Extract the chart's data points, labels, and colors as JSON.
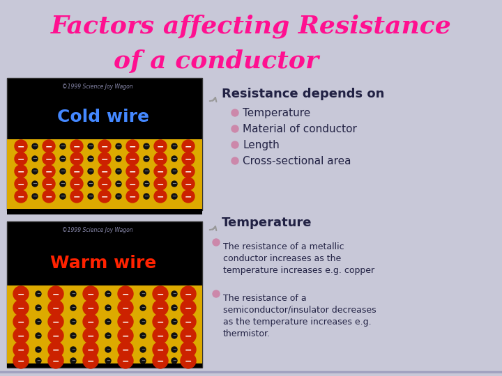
{
  "title_line1": "Factors affecting Resistance",
  "title_line2": "of a conductor",
  "title_color": "#FF1090",
  "bg_color": "#C8C8D8",
  "section1_header": "Resistance depends on",
  "section1_bullets": [
    "Temperature",
    "Material of conductor",
    "Length",
    "Cross-sectional area"
  ],
  "section2_header": "Temperature",
  "section2_bullet1": "The resistance of a metallic\nconductor increases as the\ntemperature increases e.g. copper",
  "section2_bullet2": "The resistance of a\nsemiconductor/insulator decreases\nas the temperature increases e.g.\nthermistor.",
  "header_color": "#222244",
  "bullet_color": "#222244",
  "bullet_marker_color": "#CC88AA",
  "cold_wire_label": "Cold wire",
  "warm_wire_label": "Warm wire",
  "cold_wire_label_color": "#4488FF",
  "warm_wire_label_color": "#FF2200",
  "electron_strip_color": "#DDAA00",
  "electron_color": "#CC2200",
  "copyright_color": "#8888AA",
  "arrow_color": "#999999",
  "bottom_line_color": "#9999BB"
}
